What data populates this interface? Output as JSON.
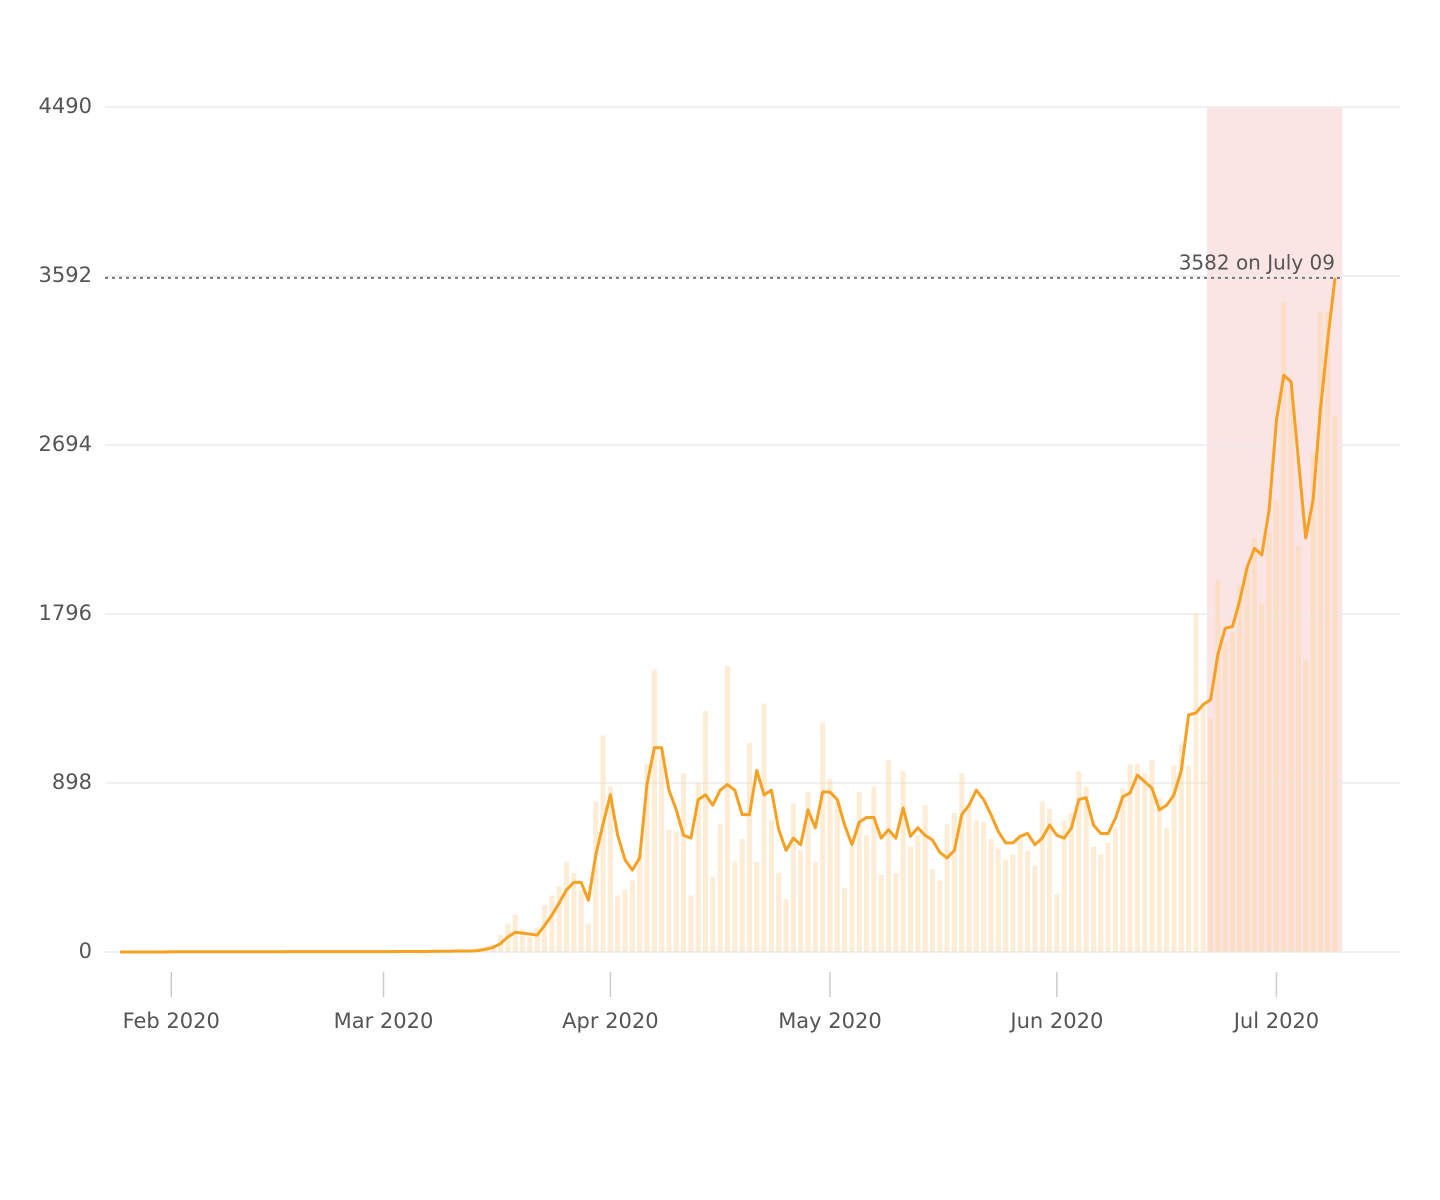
{
  "chart_data": {
    "type": "combo",
    "categories": [
      null,
      null,
      null,
      null,
      null,
      null,
      null,
      "Feb 2020",
      null,
      null,
      null,
      null,
      null,
      null,
      null,
      null,
      null,
      null,
      null,
      null,
      null,
      null,
      null,
      null,
      null,
      null,
      null,
      null,
      null,
      null,
      null,
      null,
      null,
      null,
      null,
      null,
      "Mar 2020",
      null,
      null,
      null,
      null,
      null,
      null,
      null,
      null,
      null,
      null,
      null,
      null,
      null,
      null,
      null,
      null,
      null,
      null,
      null,
      null,
      null,
      null,
      null,
      null,
      null,
      null,
      null,
      null,
      null,
      null,
      "Apr 2020",
      null,
      null,
      null,
      null,
      null,
      null,
      null,
      null,
      null,
      null,
      null,
      null,
      null,
      null,
      null,
      null,
      null,
      null,
      null,
      null,
      null,
      null,
      null,
      null,
      null,
      null,
      null,
      null,
      null,
      "May 2020",
      null,
      null,
      null,
      null,
      null,
      null,
      null,
      null,
      null,
      null,
      null,
      null,
      null,
      null,
      null,
      null,
      null,
      null,
      null,
      null,
      null,
      null,
      null,
      null,
      null,
      null,
      null,
      null,
      null,
      null,
      "Jun 2020",
      null,
      null,
      null,
      null,
      null,
      null,
      null,
      null,
      null,
      null,
      null,
      null,
      null,
      null,
      null,
      null,
      null,
      null,
      null,
      null,
      null,
      null,
      null,
      null,
      null,
      null,
      null,
      null,
      null,
      "Jul 2020",
      null,
      null,
      null,
      null,
      null,
      null,
      null,
      null
    ],
    "series": [
      {
        "kind": "bar",
        "color": "#fcd6a4",
        "values": [
          0,
          0,
          0,
          0,
          0,
          0,
          0,
          0,
          0,
          0,
          0,
          0,
          0,
          0,
          0,
          0,
          0,
          0,
          0,
          0,
          0,
          0,
          0,
          0,
          0,
          0,
          0,
          0,
          0,
          0,
          0,
          0,
          0,
          0,
          0,
          0,
          0,
          0,
          2,
          3,
          4,
          3,
          5,
          6,
          4,
          7,
          8,
          6,
          10,
          20,
          30,
          40,
          90,
          150,
          200,
          120,
          80,
          130,
          250,
          300,
          350,
          480,
          420,
          330,
          150,
          800,
          1150,
          880,
          300,
          330,
          380,
          520,
          1000,
          1500,
          1050,
          650,
          640,
          950,
          300,
          900,
          1280,
          400,
          680,
          1520,
          480,
          600,
          1110,
          480,
          1320,
          700,
          420,
          280,
          790,
          540,
          850,
          480,
          1220,
          920,
          800,
          340,
          560,
          850,
          620,
          880,
          410,
          1020,
          420,
          960,
          560,
          620,
          780,
          440,
          380,
          680,
          740,
          950,
          780,
          700,
          690,
          600,
          550,
          490,
          520,
          620,
          540,
          460,
          800,
          760,
          310,
          700,
          740,
          960,
          880,
          560,
          520,
          580,
          660,
          870,
          1000,
          1000,
          950,
          1020,
          820,
          660,
          990,
          1100,
          990,
          1800,
          1320,
          1240,
          1980,
          1650,
          1700,
          1950,
          2040,
          2200,
          1850,
          2230,
          2400,
          3450,
          2980,
          2160,
          1550,
          2650,
          3400,
          3400,
          2850
        ]
      },
      {
        "kind": "line",
        "color": "#f7a022",
        "values": [
          0,
          0,
          0,
          0,
          0,
          0,
          0,
          1,
          1,
          1,
          1,
          1,
          1,
          1,
          1,
          1,
          1,
          1,
          1,
          1,
          1,
          1,
          1,
          2,
          2,
          2,
          2,
          2,
          2,
          2,
          2,
          2,
          2,
          2,
          2,
          2,
          2,
          2,
          3,
          3,
          3,
          3,
          3,
          4,
          4,
          4,
          5,
          5,
          5,
          8,
          15,
          25,
          45,
          80,
          105,
          100,
          95,
          90,
          140,
          195,
          260,
          330,
          370,
          370,
          275,
          515,
          680,
          835,
          620,
          490,
          435,
          500,
          890,
          1085,
          1085,
          860,
          755,
          620,
          605,
          810,
          835,
          780,
          860,
          890,
          860,
          730,
          730,
          965,
          835,
          860,
          650,
          540,
          605,
          570,
          755,
          660,
          850,
          850,
          810,
          675,
          570,
          690,
          715,
          715,
          605,
          650,
          605,
          765,
          615,
          660,
          620,
          595,
          530,
          500,
          540,
          730,
          780,
          860,
          810,
          730,
          640,
          580,
          580,
          615,
          630,
          570,
          605,
          675,
          620,
          605,
          660,
          810,
          820,
          675,
          630,
          630,
          710,
          825,
          845,
          940,
          905,
          870,
          755,
          780,
          835,
          965,
          1260,
          1270,
          1315,
          1340,
          1580,
          1720,
          1730,
          1870,
          2045,
          2145,
          2110,
          2350,
          2825,
          3065,
          3030,
          2615,
          2200,
          2400,
          2880,
          3250,
          3582
        ]
      }
    ],
    "highlight_range": [
      149,
      166
    ],
    "highlight_color": "#fbe4e4",
    "annotation": {
      "text": "3582 on July 09",
      "value": 3582
    },
    "ylim": [
      0,
      4490
    ],
    "yticks": [
      0,
      898,
      1796,
      2694,
      3592,
      4490
    ],
    "grid": true
  }
}
